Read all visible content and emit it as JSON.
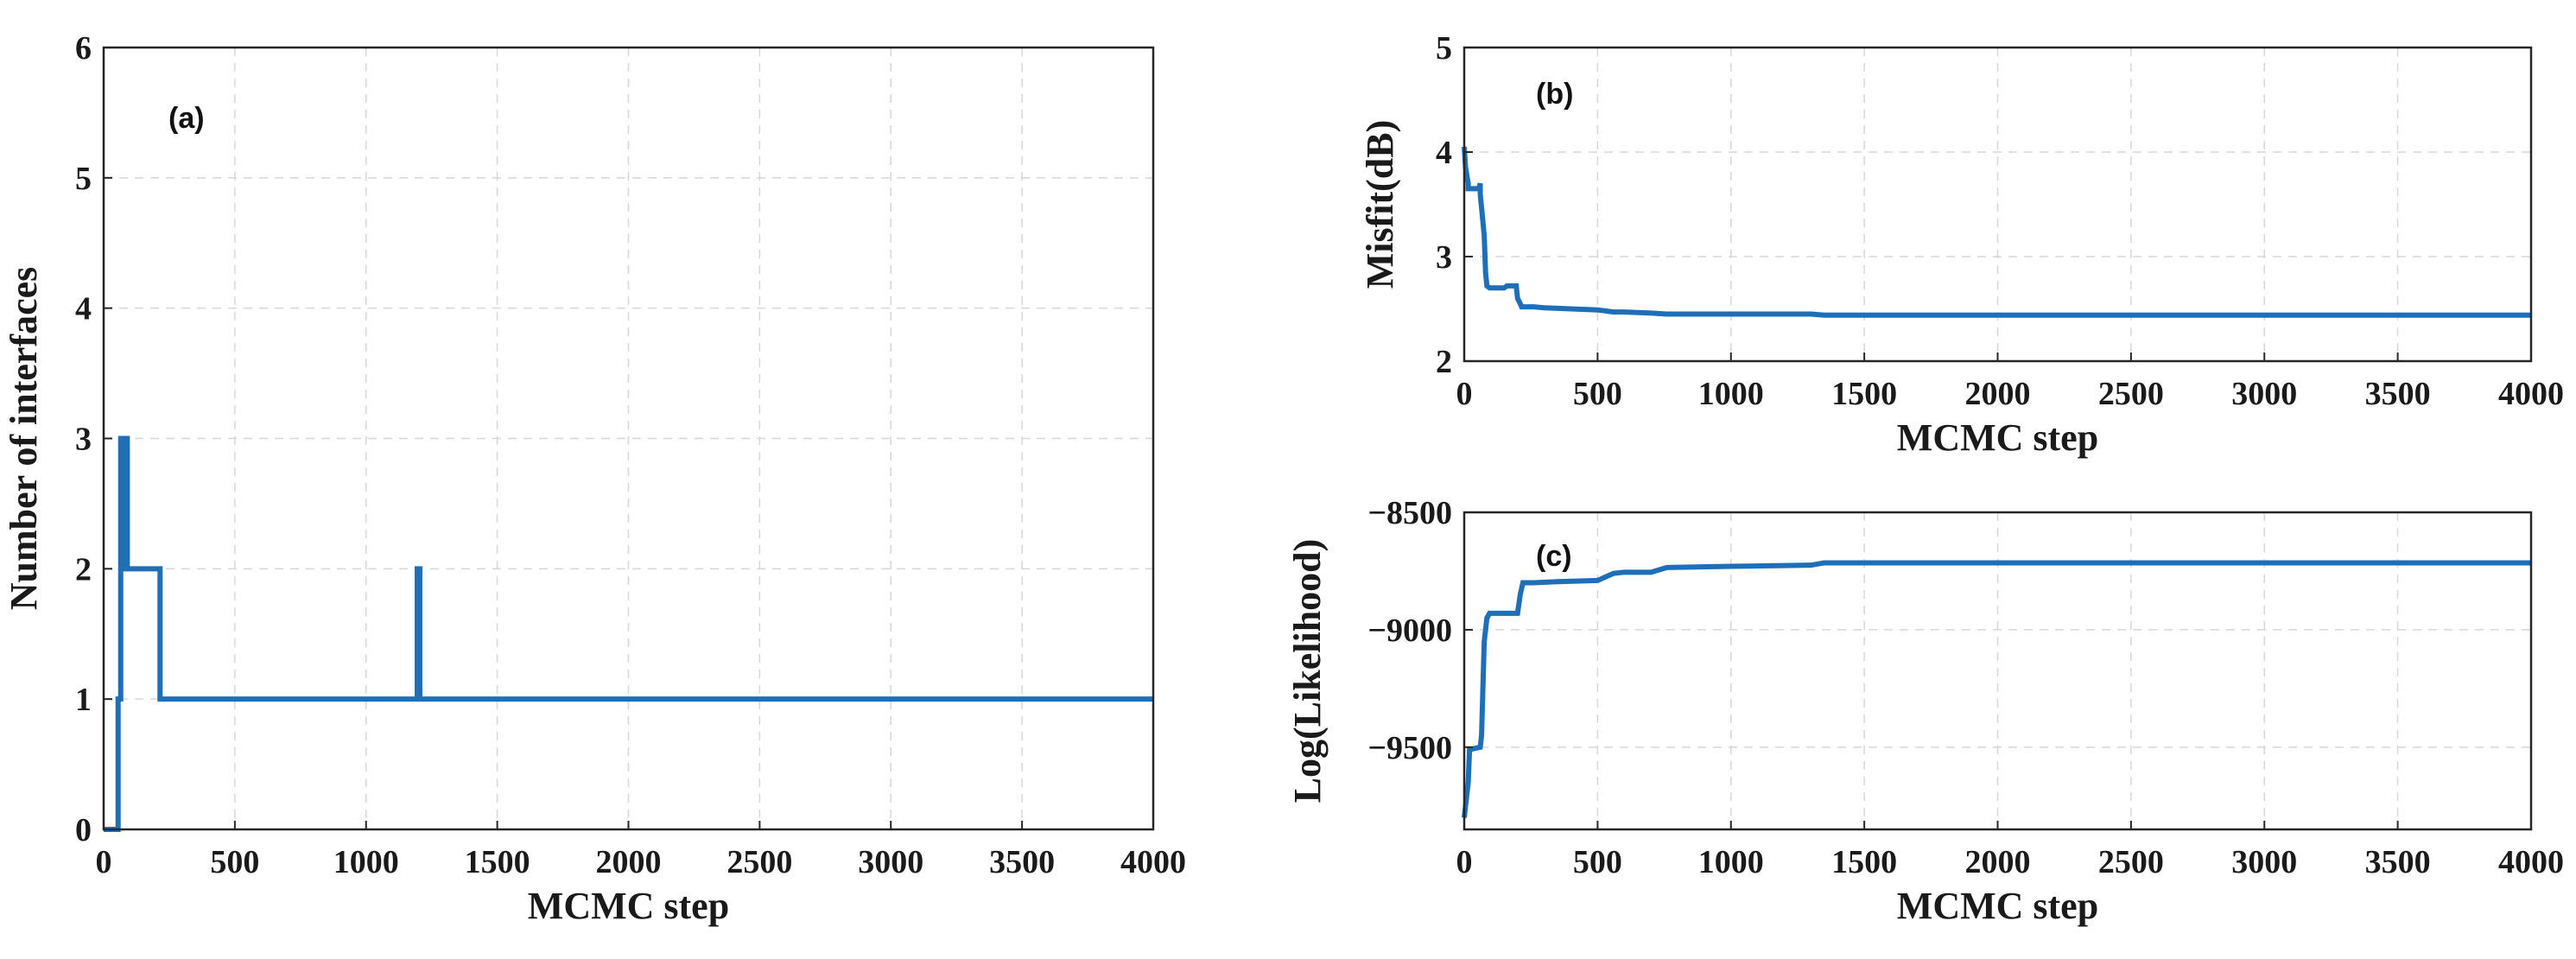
{
  "chart_data": [
    {
      "id": "a",
      "type": "line",
      "panel_label": "(a)",
      "xlabel": "MCMC step",
      "ylabel": "Number of interfaces",
      "xlim": [
        0,
        4000
      ],
      "ylim": [
        0,
        6
      ],
      "xticks": [
        0,
        500,
        1000,
        1500,
        2000,
        2500,
        3000,
        3500,
        4000
      ],
      "yticks": [
        0,
        1,
        2,
        3,
        4,
        5,
        6
      ],
      "grid": true,
      "color": "#1f6fb8",
      "series": [
        {
          "name": "interfaces",
          "x": [
            0,
            55,
            55,
            65,
            65,
            72,
            72,
            80,
            80,
            90,
            90,
            215,
            215,
            1195,
            1195,
            1205,
            1205,
            4000
          ],
          "y": [
            0,
            0,
            1,
            1,
            3,
            3,
            2,
            2,
            3,
            3,
            2,
            2,
            1,
            1,
            2,
            2,
            1,
            1
          ]
        }
      ]
    },
    {
      "id": "b",
      "type": "line",
      "panel_label": "(b)",
      "xlabel": "MCMC step",
      "ylabel": "Misfit(dB)",
      "xlim": [
        0,
        4000
      ],
      "ylim": [
        2,
        5
      ],
      "xticks": [
        0,
        500,
        1000,
        1500,
        2000,
        2500,
        3000,
        3500,
        4000
      ],
      "yticks": [
        2,
        3,
        4,
        5
      ],
      "grid": true,
      "color": "#1f6fb8",
      "series": [
        {
          "name": "misfit",
          "x": [
            0,
            5,
            15,
            15,
            55,
            60,
            60,
            75,
            80,
            85,
            95,
            150,
            160,
            195,
            200,
            210,
            215,
            260,
            300,
            400,
            500,
            560,
            600,
            700,
            760,
            900,
            1000,
            1100,
            1300,
            1350,
            2000,
            3000,
            3500,
            4000
          ],
          "y": [
            4.05,
            3.85,
            3.7,
            3.65,
            3.65,
            3.7,
            3.6,
            3.2,
            2.85,
            2.72,
            2.7,
            2.7,
            2.72,
            2.72,
            2.6,
            2.55,
            2.52,
            2.52,
            2.51,
            2.5,
            2.49,
            2.47,
            2.47,
            2.46,
            2.45,
            2.45,
            2.45,
            2.45,
            2.45,
            2.44,
            2.44,
            2.44,
            2.44,
            2.44
          ]
        }
      ]
    },
    {
      "id": "c",
      "type": "line",
      "panel_label": "(c)",
      "xlabel": "MCMC step",
      "ylabel": "Log(Likelihood)",
      "xlim": [
        0,
        4000
      ],
      "ylim": [
        -9850,
        -8500
      ],
      "xticks": [
        0,
        500,
        1000,
        1500,
        2000,
        2500,
        3000,
        3500,
        4000
      ],
      "yticks": [
        -8500,
        -9000,
        -9500
      ],
      "ytick_labels": [
        "−8500",
        "−9000",
        "−9500"
      ],
      "grid": true,
      "color": "#1f6fb8",
      "series": [
        {
          "name": "log-likelihood",
          "x": [
            0,
            5,
            15,
            20,
            60,
            65,
            75,
            85,
            95,
            100,
            150,
            200,
            210,
            220,
            260,
            350,
            500,
            560,
            600,
            700,
            760,
            1000,
            1300,
            1350,
            2000,
            3000,
            4000
          ],
          "y": [
            -9800,
            -9750,
            -9650,
            -9510,
            -9500,
            -9450,
            -9050,
            -8950,
            -8930,
            -8930,
            -8930,
            -8930,
            -8850,
            -8800,
            -8800,
            -8795,
            -8790,
            -8760,
            -8755,
            -8755,
            -8735,
            -8730,
            -8725,
            -8715,
            -8715,
            -8715,
            -8715
          ]
        }
      ]
    }
  ]
}
